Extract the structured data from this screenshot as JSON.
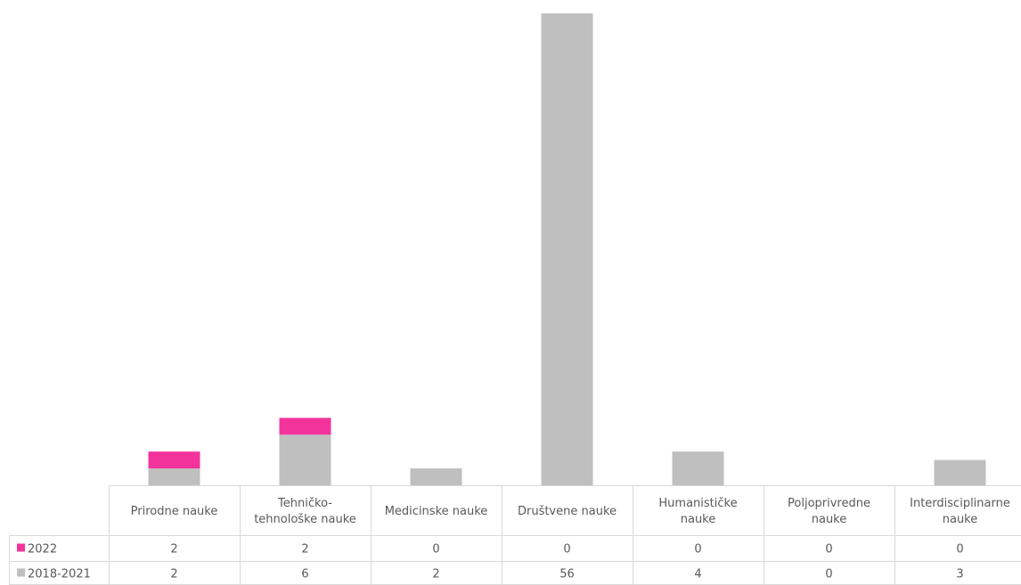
{
  "chart_data": {
    "type": "bar",
    "stacked": true,
    "categories": [
      [
        "Prirodne nauke"
      ],
      [
        "Tehničko-",
        "tehnološke nauke"
      ],
      [
        "Medicinske nauke"
      ],
      [
        "Društvene nauke"
      ],
      [
        "Humanističke",
        "nauke"
      ],
      [
        "Poljoprivredne",
        "nauke"
      ],
      [
        "Interdisciplinarne",
        "nauke"
      ]
    ],
    "series": [
      {
        "name": "2022",
        "values": [
          2,
          2,
          0,
          0,
          0,
          0,
          0
        ],
        "color": "#f3339c"
      },
      {
        "name": "2018-2021",
        "values": [
          2,
          6,
          2,
          56,
          4,
          0,
          3
        ],
        "color": "#bfbfbf"
      }
    ],
    "stack_order": [
      "2018-2021",
      "2022"
    ],
    "ylim": [
      0,
      56
    ],
    "data_table": true,
    "legend_in_table": true,
    "grid": false,
    "table_lines_color": "#d9d9d9"
  }
}
